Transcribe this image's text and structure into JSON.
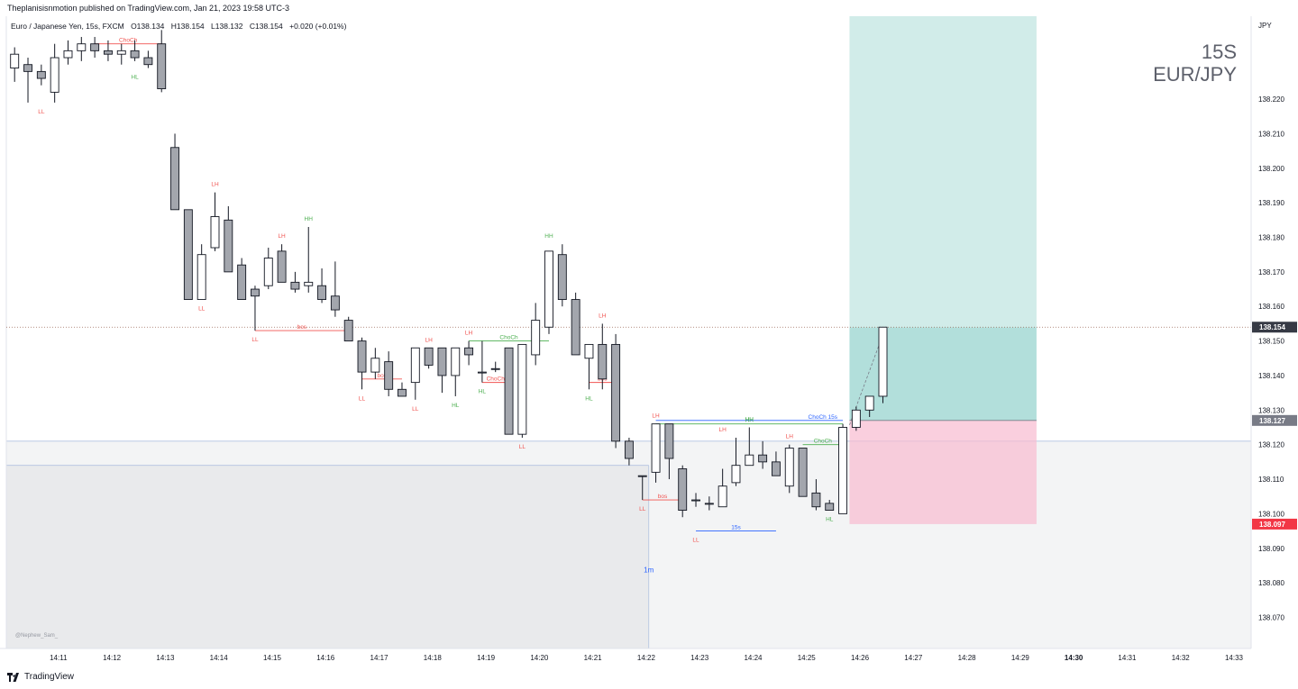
{
  "header": {
    "published": "Theplanisisnmotion published on TradingView.com, Jan 21, 2023 19:58 UTC-3",
    "symbol_name": "Euro / Japanese Yen, 15s, FXCM",
    "open": "O138.134",
    "high": "H138.154",
    "low": "L138.132",
    "close": "C138.154",
    "change": "+0.020 (+0.01%)"
  },
  "watermark": {
    "line1": "15S",
    "line2": "EUR/JPY"
  },
  "footer": {
    "brand": "TradingView",
    "author": "@Nephew_Sam_"
  },
  "colors": {
    "candle_up_fill": "#ffffff",
    "candle_down_fill": "#a3a6ad",
    "candle_border": "#131722",
    "bullish_label": "#4caf50",
    "bearish_label": "#f05350",
    "structure_blue": "#2962ff",
    "target_zone": "#b2dfdb",
    "stop_zone": "#f8bbd0",
    "last_price_tag": "#363a45",
    "entry_tag": "#787b86",
    "stop_tag": "#f23645",
    "htf_box": "#e9eaec",
    "axis_text": "#131722"
  },
  "chart_data": {
    "type": "candlestick",
    "price_axis_label": "JPY",
    "y_range": [
      138.061,
      138.244
    ],
    "y_ticks": [
      "138.220",
      "138.210",
      "138.200",
      "138.190",
      "138.180",
      "138.170",
      "138.160",
      "138.150",
      "138.140",
      "138.130",
      "138.120",
      "138.110",
      "138.100",
      "138.090",
      "138.080",
      "138.070"
    ],
    "x_ticks": [
      {
        "label": "14:11",
        "bar": 2
      },
      {
        "label": "14:12",
        "bar": 6
      },
      {
        "label": "14:13",
        "bar": 10
      },
      {
        "label": "14:14",
        "bar": 14
      },
      {
        "label": "14:15",
        "bar": 18
      },
      {
        "label": "14:16",
        "bar": 22
      },
      {
        "label": "14:17",
        "bar": 26
      },
      {
        "label": "14:18",
        "bar": 30
      },
      {
        "label": "14:19",
        "bar": 34
      },
      {
        "label": "14:20",
        "bar": 38
      },
      {
        "label": "14:21",
        "bar": 42
      },
      {
        "label": "14:22",
        "bar": 46
      },
      {
        "label": "14:23",
        "bar": 50
      },
      {
        "label": "14:24",
        "bar": 54
      },
      {
        "label": "14:25",
        "bar": 58
      },
      {
        "label": "14:26",
        "bar": 62
      },
      {
        "label": "14:27",
        "bar": 66
      },
      {
        "label": "14:28",
        "bar": 70
      },
      {
        "label": "14:29",
        "bar": 74
      },
      {
        "label": "14:30",
        "bar": 78,
        "bold": true
      },
      {
        "label": "14:31",
        "bar": 82
      },
      {
        "label": "14:32",
        "bar": 86
      },
      {
        "label": "14:33",
        "bar": 90
      }
    ],
    "ohlc": [
      [
        138.229,
        138.235,
        138.225,
        138.233
      ],
      [
        138.23,
        138.232,
        138.219,
        138.228
      ],
      [
        138.228,
        138.23,
        138.224,
        138.226
      ],
      [
        138.222,
        138.236,
        138.219,
        138.232
      ],
      [
        138.232,
        138.237,
        138.23,
        138.234
      ],
      [
        138.234,
        138.238,
        138.231,
        138.236
      ],
      [
        138.236,
        138.238,
        138.232,
        138.234
      ],
      [
        138.234,
        138.237,
        138.231,
        138.233
      ],
      [
        138.233,
        138.236,
        138.23,
        138.234
      ],
      [
        138.234,
        138.237,
        138.231,
        138.232
      ],
      [
        138.232,
        138.234,
        138.229,
        138.23
      ],
      [
        138.236,
        138.24,
        138.222,
        138.223
      ],
      [
        138.206,
        138.21,
        138.188,
        138.188
      ],
      [
        138.188,
        138.188,
        138.162,
        138.162
      ],
      [
        138.162,
        138.178,
        138.162,
        138.175
      ],
      [
        138.177,
        138.193,
        138.176,
        138.186
      ],
      [
        138.185,
        138.189,
        138.17,
        138.17
      ],
      [
        138.172,
        138.174,
        138.162,
        138.162
      ],
      [
        138.165,
        138.166,
        138.153,
        138.163
      ],
      [
        138.166,
        138.177,
        138.165,
        138.174
      ],
      [
        138.176,
        138.178,
        138.167,
        138.167
      ],
      [
        138.167,
        138.17,
        138.164,
        138.165
      ],
      [
        138.166,
        138.183,
        138.164,
        138.167
      ],
      [
        138.166,
        138.171,
        138.161,
        138.162
      ],
      [
        138.163,
        138.173,
        138.157,
        138.159
      ],
      [
        138.156,
        138.157,
        138.15,
        138.15
      ],
      [
        138.15,
        138.151,
        138.136,
        138.141
      ],
      [
        138.141,
        138.148,
        138.139,
        138.145
      ],
      [
        138.144,
        138.147,
        138.134,
        138.136
      ],
      [
        138.136,
        138.138,
        138.134,
        138.134
      ],
      [
        138.138,
        138.148,
        138.133,
        138.148
      ],
      [
        138.148,
        138.148,
        138.142,
        138.143
      ],
      [
        138.148,
        138.148,
        138.135,
        138.14
      ],
      [
        138.14,
        138.148,
        138.134,
        138.148
      ],
      [
        138.148,
        138.15,
        138.143,
        138.146
      ],
      [
        138.141,
        138.15,
        138.138,
        138.141
      ],
      [
        138.142,
        138.144,
        138.141,
        138.142
      ],
      [
        138.148,
        138.148,
        138.123,
        138.123
      ],
      [
        138.123,
        138.149,
        138.122,
        138.149
      ],
      [
        138.146,
        138.161,
        138.143,
        138.156
      ],
      [
        138.154,
        138.176,
        138.152,
        138.176
      ],
      [
        138.175,
        138.178,
        138.16,
        138.162
      ],
      [
        138.162,
        138.164,
        138.146,
        138.146
      ],
      [
        138.145,
        138.149,
        138.136,
        138.149
      ],
      [
        138.149,
        138.155,
        138.136,
        138.139
      ],
      [
        138.149,
        138.152,
        138.119,
        138.121
      ],
      [
        138.121,
        138.122,
        138.114,
        138.116
      ],
      [
        138.111,
        138.111,
        138.104,
        138.111
      ],
      [
        138.112,
        138.126,
        138.109,
        138.126
      ],
      [
        138.126,
        138.126,
        138.11,
        138.116
      ],
      [
        138.113,
        138.114,
        138.099,
        138.101
      ],
      [
        138.104,
        138.106,
        138.102,
        138.104
      ],
      [
        138.103,
        138.105,
        138.101,
        138.103
      ],
      [
        138.102,
        138.113,
        138.102,
        138.108
      ],
      [
        138.109,
        138.122,
        138.108,
        138.114
      ],
      [
        138.114,
        138.125,
        138.114,
        138.117
      ],
      [
        138.117,
        138.121,
        138.113,
        138.115
      ],
      [
        138.115,
        138.118,
        138.112,
        138.111
      ],
      [
        138.108,
        138.12,
        138.106,
        138.119
      ],
      [
        138.119,
        138.119,
        138.105,
        138.105
      ],
      [
        138.106,
        138.11,
        138.101,
        138.102
      ],
      [
        138.103,
        138.104,
        138.101,
        138.101
      ],
      [
        138.1,
        138.126,
        138.1,
        138.125
      ],
      [
        138.125,
        138.131,
        138.124,
        138.13
      ],
      [
        138.13,
        138.134,
        138.128,
        138.134
      ],
      [
        138.134,
        138.154,
        138.132,
        138.154
      ]
    ],
    "structure_labels": [
      {
        "text": "LL",
        "bar": 2,
        "price": 138.219,
        "pos": "below",
        "color": "bearish"
      },
      {
        "text": "HL",
        "bar": 9,
        "price": 138.229,
        "pos": "below",
        "color": "bullish"
      },
      {
        "text": "LH",
        "bar": 15,
        "price": 138.193,
        "pos": "above",
        "color": "bearish"
      },
      {
        "text": "LL",
        "bar": 14,
        "price": 138.162,
        "pos": "below",
        "color": "bearish"
      },
      {
        "text": "LH",
        "bar": 20,
        "price": 138.178,
        "pos": "above",
        "color": "bearish"
      },
      {
        "text": "HH",
        "bar": 22,
        "price": 138.183,
        "pos": "above",
        "color": "bullish"
      },
      {
        "text": "LL",
        "bar": 18,
        "price": 138.153,
        "pos": "below",
        "color": "bearish"
      },
      {
        "text": "LH",
        "bar": 31,
        "price": 138.148,
        "pos": "above",
        "color": "bearish"
      },
      {
        "text": "LH",
        "bar": 34,
        "price": 138.15,
        "pos": "above",
        "color": "bearish"
      },
      {
        "text": "LL",
        "bar": 26,
        "price": 138.136,
        "pos": "below",
        "color": "bearish"
      },
      {
        "text": "LL",
        "bar": 30,
        "price": 138.133,
        "pos": "below",
        "color": "bearish"
      },
      {
        "text": "HL",
        "bar": 33,
        "price": 138.134,
        "pos": "below",
        "color": "bullish"
      },
      {
        "text": "HL",
        "bar": 35,
        "price": 138.138,
        "pos": "below",
        "color": "bullish"
      },
      {
        "text": "HH",
        "bar": 40,
        "price": 138.178,
        "pos": "above",
        "color": "bullish"
      },
      {
        "text": "LH",
        "bar": 44,
        "price": 138.155,
        "pos": "above",
        "color": "bearish"
      },
      {
        "text": "HL",
        "bar": 43,
        "price": 138.136,
        "pos": "below",
        "color": "bullish"
      },
      {
        "text": "LL",
        "bar": 38,
        "price": 138.122,
        "pos": "below",
        "color": "bearish"
      },
      {
        "text": "LH",
        "bar": 48,
        "price": 138.126,
        "pos": "above",
        "color": "bearish"
      },
      {
        "text": "LL",
        "bar": 47,
        "price": 138.104,
        "pos": "below",
        "color": "bearish"
      },
      {
        "text": "LL",
        "bar": 51,
        "price": 138.095,
        "pos": "below",
        "color": "bearish"
      },
      {
        "text": "LH",
        "bar": 53,
        "price": 138.122,
        "pos": "above",
        "color": "bearish"
      },
      {
        "text": "HH",
        "bar": 55,
        "price": 138.125,
        "pos": "above",
        "color": "bullish"
      },
      {
        "text": "LH",
        "bar": 58,
        "price": 138.12,
        "pos": "above",
        "color": "bearish"
      },
      {
        "text": "HL",
        "bar": 61,
        "price": 138.101,
        "pos": "below",
        "color": "bullish"
      }
    ],
    "structure_lines": [
      {
        "text": "ChoCh",
        "color": "bearish",
        "bar_from": 6,
        "bar_to": 11,
        "price": 138.236
      },
      {
        "text": "bos",
        "color": "bearish",
        "bar_from": 18,
        "bar_to": 25,
        "price": 138.153
      },
      {
        "text": "bos",
        "color": "bearish",
        "bar_from": 26,
        "bar_to": 29,
        "price": 138.139
      },
      {
        "text": "ChoCh",
        "color": "bullish",
        "bar_from": 34,
        "bar_to": 40,
        "price": 138.15
      },
      {
        "text": "ChoCh",
        "color": "bearish",
        "bar_from": 35,
        "bar_to": 37,
        "price": 138.138
      },
      {
        "text": "bos",
        "color": "bearish",
        "bar_from": 43,
        "bar_to": 45,
        "price": 138.138
      },
      {
        "text": "bos",
        "color": "bearish",
        "bar_from": 47,
        "bar_to": 50,
        "price": 138.104
      },
      {
        "text": "HH",
        "color": "bullish",
        "bar_from": 48,
        "bar_to": 62,
        "price": 138.126,
        "label_bar": 55
      },
      {
        "text": "ChoCh 15s",
        "color": "structure_blue",
        "bar_from": 48,
        "bar_to": 62,
        "price": 138.127,
        "label_bar": 60.5
      },
      {
        "text": "ChoCh",
        "color": "bullish",
        "bar_from": 59,
        "bar_to": 62,
        "price": 138.12
      },
      {
        "text": "15s",
        "color": "structure_blue",
        "bar_from": 51,
        "bar_to": 57,
        "price": 138.095
      }
    ],
    "htf_label": {
      "text": "1m",
      "bar": 47,
      "price": 138.083
    },
    "htf_zone": {
      "top": 138.114,
      "bottom": 138.061
    },
    "htf_zone_upper": {
      "top": 138.121,
      "bottom": 138.061
    },
    "position": {
      "type": "long",
      "entry": 138.127,
      "target": 138.244,
      "stop": 138.097,
      "bar_from": 62.5,
      "bar_to": 76.5
    },
    "last_price": 138.154,
    "price_tags": [
      {
        "value": "138.154",
        "kind": "last"
      },
      {
        "value": "138.127",
        "kind": "entry"
      },
      {
        "value": "138.097",
        "kind": "stop"
      }
    ]
  }
}
